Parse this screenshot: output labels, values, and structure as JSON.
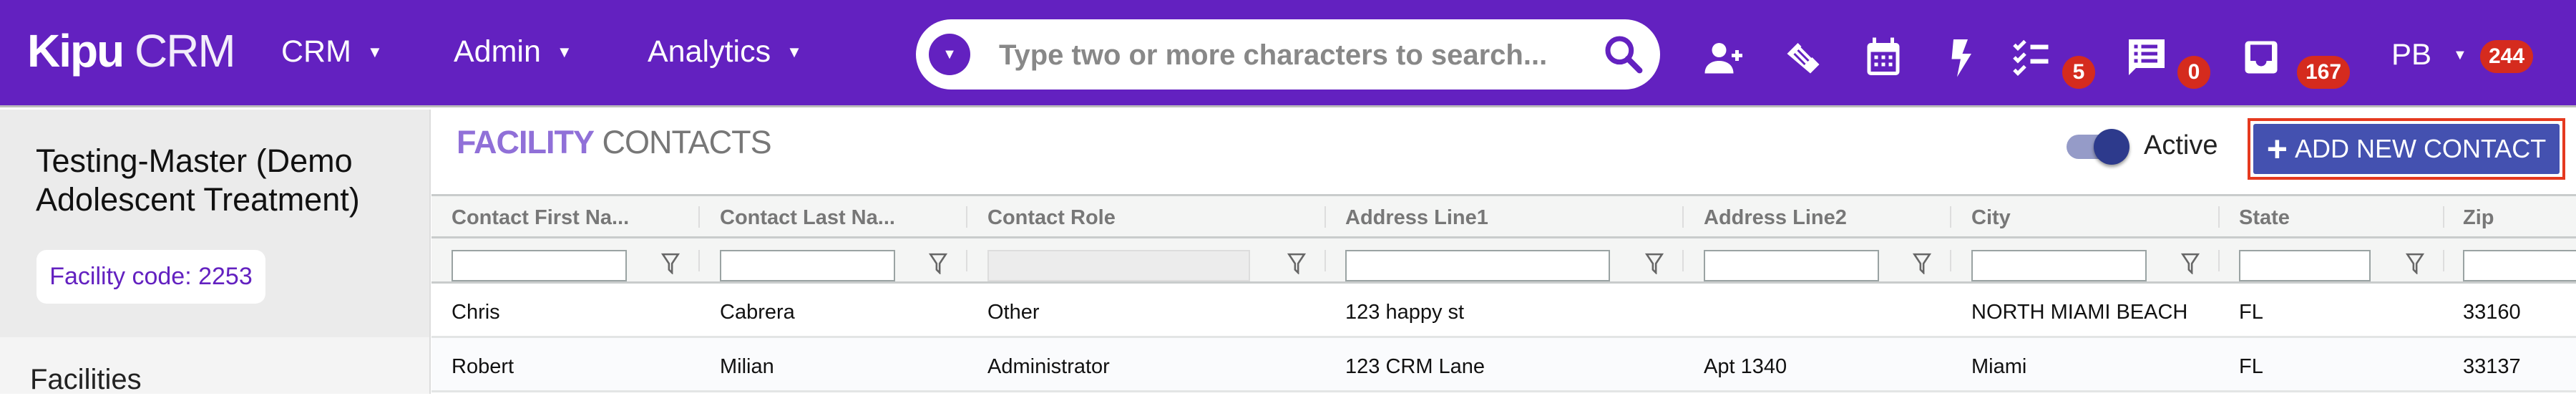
{
  "header": {
    "logo_bold": "Kipu",
    "logo_light": "CRM",
    "nav": [
      {
        "label": "CRM"
      },
      {
        "label": "Admin"
      },
      {
        "label": "Analytics"
      }
    ],
    "search": {
      "placeholder": "Type two or more characters to search..."
    },
    "icons": [
      "user-plus-icon",
      "handshake-icon",
      "calendar-icon",
      "bolt-icon",
      "tasks-icon",
      "chat-icon",
      "inbox-icon"
    ],
    "badges": {
      "tasks": "5",
      "messages": "0",
      "inbox": "167",
      "user": "244"
    },
    "user_initials": "PB",
    "colors": {
      "brand": "#6321c0",
      "badge": "#d52b1e"
    }
  },
  "sidebar": {
    "facility_name": "Testing-Master (Demo Adolescent Treatment)",
    "facility_code": "Facility code: 2253",
    "section": "Facilities"
  },
  "main": {
    "title_bold": "FACILITY",
    "title_light": "CONTACTS",
    "toggle": {
      "label": "Active",
      "on": true
    },
    "add_button": "ADD NEW CONTACT",
    "columns": [
      "Contact First Na...",
      "Contact Last Na...",
      "Contact Role",
      "Address Line1",
      "Address Line2",
      "City",
      "State",
      "Zip"
    ],
    "rows": [
      [
        "Chris",
        "Cabrera",
        "Other",
        "123 happy st",
        "",
        "NORTH MIAMI BEACH",
        "FL",
        "33160"
      ],
      [
        "Robert",
        "Milian",
        "Administrator",
        "123 CRM Lane",
        "Apt 1340",
        "Miami",
        "FL",
        "33137"
      ]
    ],
    "button_color": "#4451b0"
  }
}
